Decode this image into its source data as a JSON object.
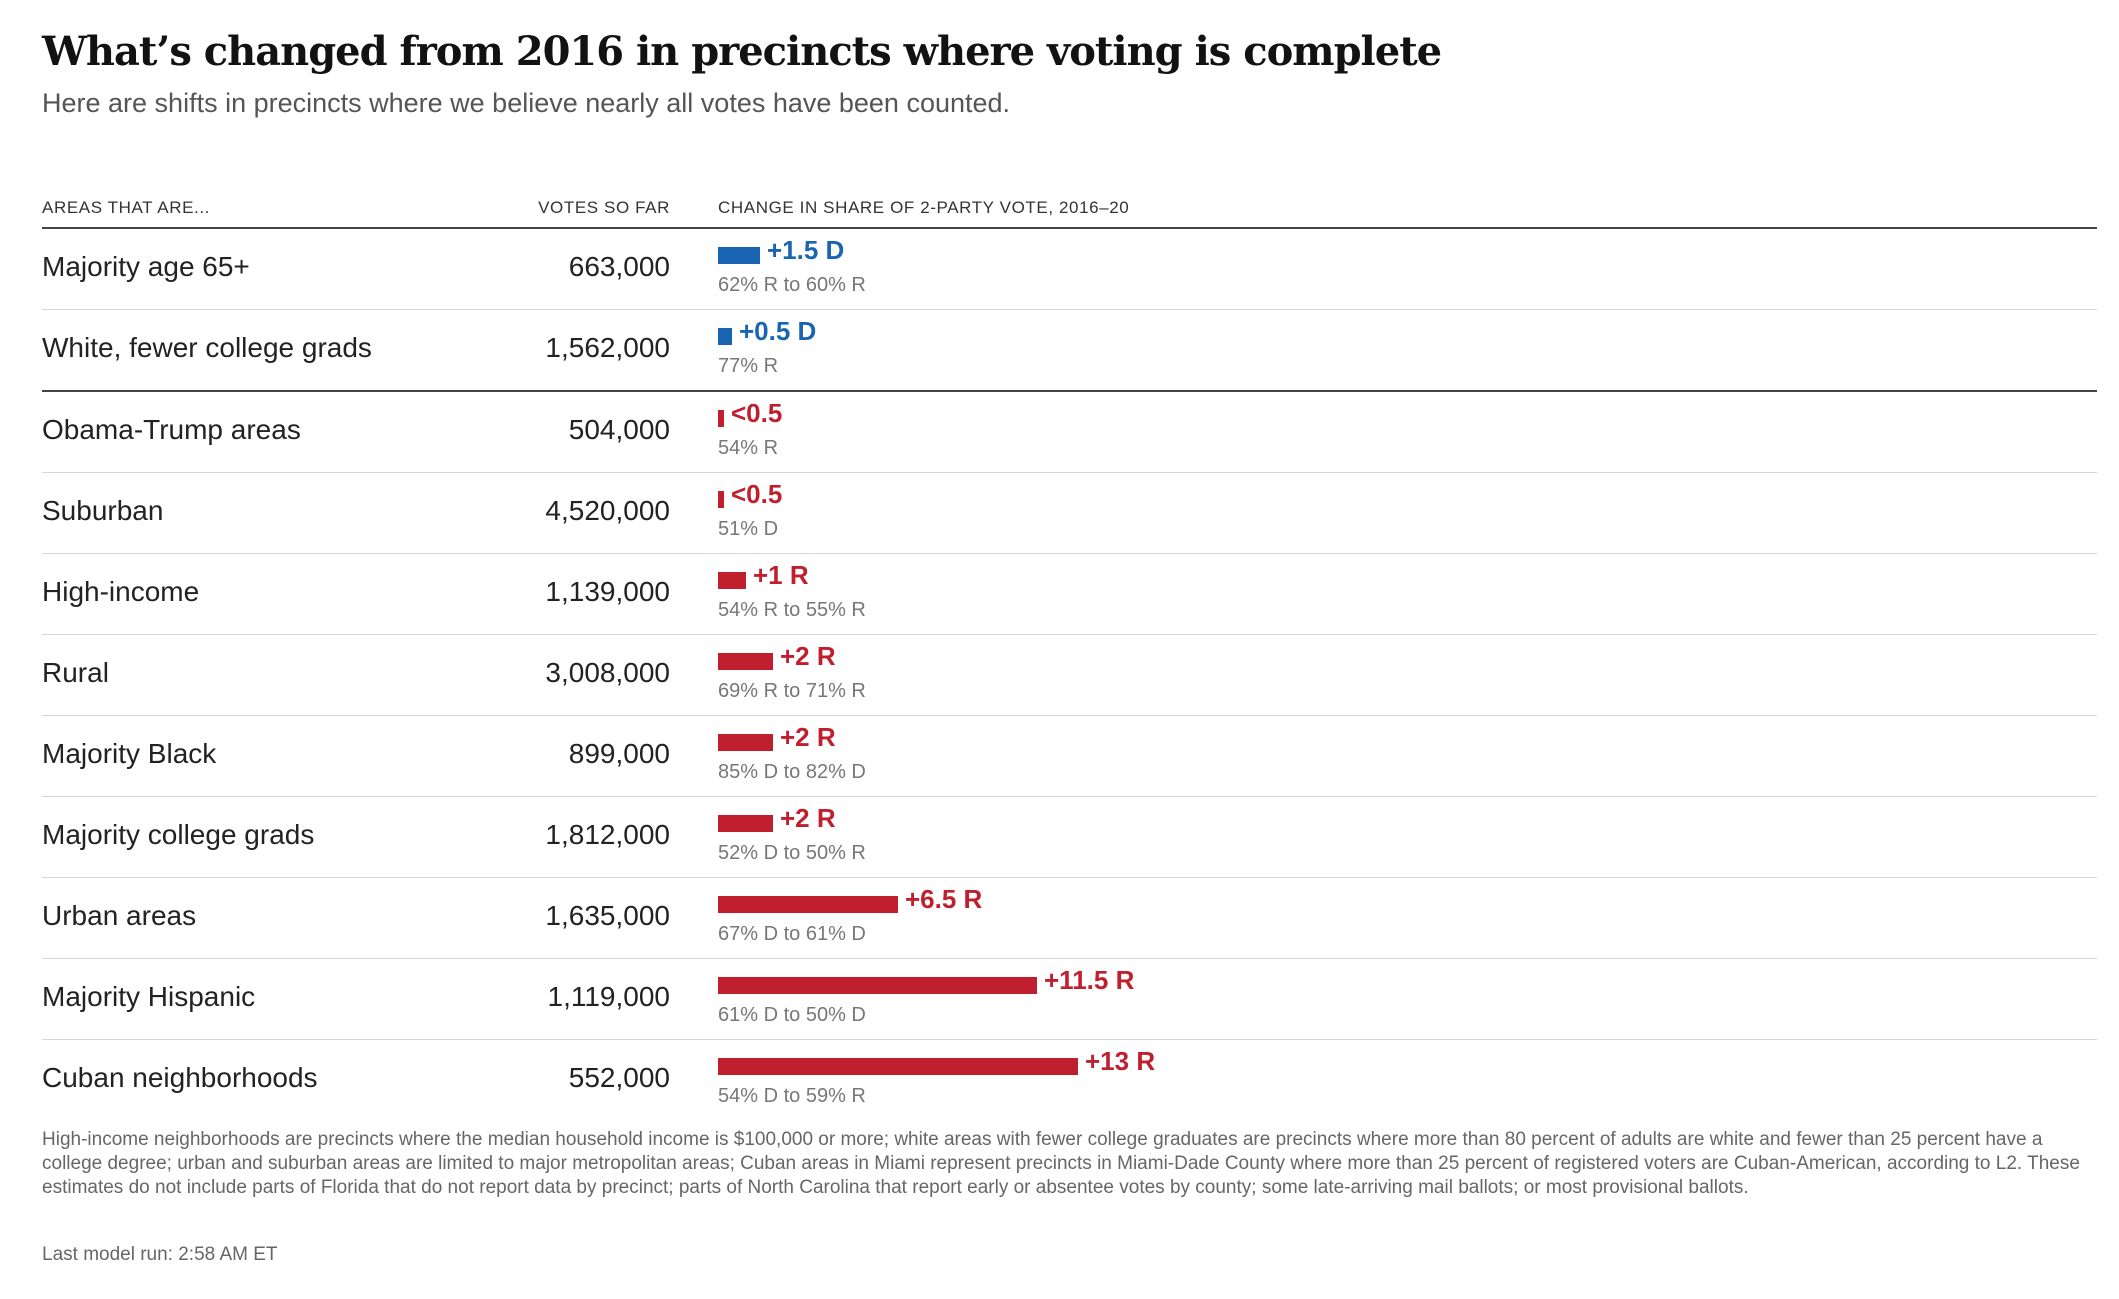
{
  "title": "What’s changed from 2016 in precincts where voting is complete",
  "subtitle": "Here are shifts in precincts where we believe nearly all votes have been counted.",
  "headers": {
    "area": "AREAS THAT ARE...",
    "votes": "VOTES SO FAR",
    "change": "CHANGE IN SHARE OF 2-PARTY VOTE, 2016–20"
  },
  "colors": {
    "dem": "#1a64b4",
    "rep": "#c0202e"
  },
  "chart_data": {
    "type": "bar",
    "title": "What’s changed from 2016 in precincts where voting is complete",
    "xlabel": "CHANGE IN SHARE OF 2-PARTY VOTE, 2016–20",
    "ylabel": "",
    "categories": [
      "Majority age 65+",
      "White, fewer college grads",
      "Obama-Trump areas",
      "Suburban",
      "High-income",
      "Rural",
      "Majority Black",
      "Majority college grads",
      "Urban areas",
      "Majority Hispanic",
      "Cuban neighborhoods"
    ],
    "rows": [
      {
        "area": "Majority age 65+",
        "votes": "663,000",
        "change": 1.5,
        "party": "D",
        "label": "+1.5 D",
        "detail": "62% R to 60% R"
      },
      {
        "area": "White, fewer college grads",
        "votes": "1,562,000",
        "change": 0.5,
        "party": "D",
        "label": "+0.5 D",
        "detail": "77% R"
      },
      {
        "area": "Obama-Trump areas",
        "votes": "504,000",
        "change": 0.2,
        "party": "R",
        "label": "<0.5",
        "detail": "54% R"
      },
      {
        "area": "Suburban",
        "votes": "4,520,000",
        "change": 0.2,
        "party": "R",
        "label": "<0.5",
        "detail": "51% D"
      },
      {
        "area": "High-income",
        "votes": "1,139,000",
        "change": 1,
        "party": "R",
        "label": "+1 R",
        "detail": "54% R to 55% R"
      },
      {
        "area": "Rural",
        "votes": "3,008,000",
        "change": 2,
        "party": "R",
        "label": "+2 R",
        "detail": "69% R to 71% R"
      },
      {
        "area": "Majority Black",
        "votes": "899,000",
        "change": 2,
        "party": "R",
        "label": "+2 R",
        "detail": "85% D to 82% D"
      },
      {
        "area": "Majority college grads",
        "votes": "1,812,000",
        "change": 2,
        "party": "R",
        "label": "+2 R",
        "detail": "52% D to 50% R"
      },
      {
        "area": "Urban areas",
        "votes": "1,635,000",
        "change": 6.5,
        "party": "R",
        "label": "+6.5 R",
        "detail": "67% D to 61% D"
      },
      {
        "area": "Majority Hispanic",
        "votes": "1,119,000",
        "change": 11.5,
        "party": "R",
        "label": "+11.5 R",
        "detail": "61% D to 50% D"
      },
      {
        "area": "Cuban neighborhoods",
        "votes": "552,000",
        "change": 13,
        "party": "R",
        "label": "+13 R",
        "detail": "54% D to 59% R"
      }
    ],
    "xlim": [
      0,
      13
    ]
  },
  "note": "High-income neighborhoods are precincts where the median household income is $100,000 or more; white areas with fewer college graduates are precincts where more than 80 percent of adults are white and fewer than 25 percent have a college degree; urban and suburban areas are limited to major metropolitan areas; Cuban areas in Miami represent precincts in Miami-Dade County where more than 25 percent of registered voters are Cuban-American, according to L2. These estimates do not include parts of Florida that do not report data by precinct; parts of North Carolina that report early or absentee votes by county; some late-arriving mail ballots; or most provisional ballots.",
  "last_run": "Last model run: 2:58 AM ET"
}
